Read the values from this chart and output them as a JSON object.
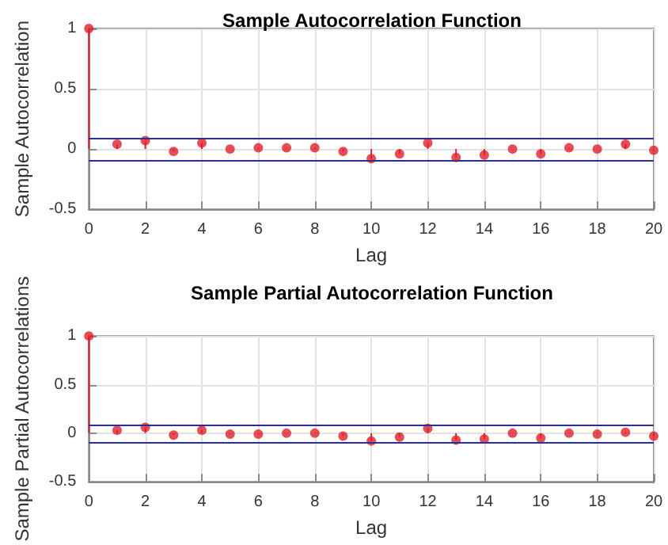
{
  "chart_data": [
    {
      "type": "lollipop",
      "title": "Sample Autocorrelation Function",
      "xlabel": "Lag",
      "ylabel": "Sample Autocorrelation",
      "x": [
        0,
        1,
        2,
        3,
        4,
        5,
        6,
        7,
        8,
        9,
        10,
        11,
        12,
        13,
        14,
        15,
        16,
        17,
        18,
        19,
        20
      ],
      "series": [
        {
          "color": "#e0202a",
          "values": [
            1,
            0.04,
            0.07,
            -0.02,
            0.05,
            0,
            0.01,
            0.01,
            0.01,
            -0.02,
            -0.08,
            -0.04,
            0.05,
            -0.07,
            -0.05,
            0,
            -0.04,
            0.01,
            0,
            0.04,
            -0.01
          ]
        }
      ],
      "xlim": [
        0,
        20
      ],
      "xticks": [
        0,
        2,
        4,
        6,
        8,
        10,
        12,
        14,
        16,
        18,
        20
      ],
      "ylim": [
        -0.5,
        1
      ],
      "yticks": [
        -0.5,
        0,
        0.5,
        1
      ],
      "grid": true,
      "marker": "circle",
      "ref_lines": [
        {
          "axis": "y",
          "value": 0.09,
          "color": "#2b2f8f"
        },
        {
          "axis": "y",
          "value": -0.09,
          "color": "#2b2f8f"
        }
      ]
    },
    {
      "type": "lollipop",
      "title": "Sample Partial Autocorrelation Function",
      "xlabel": "Lag",
      "ylabel": "Sample Partial Autocorrelations",
      "x": [
        0,
        1,
        2,
        3,
        4,
        5,
        6,
        7,
        8,
        9,
        10,
        11,
        12,
        13,
        14,
        15,
        16,
        17,
        18,
        19,
        20
      ],
      "series": [
        {
          "color": "#e0202a",
          "values": [
            1,
            0.03,
            0.06,
            -0.02,
            0.03,
            -0.01,
            -0.01,
            0,
            0,
            -0.03,
            -0.08,
            -0.04,
            0.05,
            -0.07,
            -0.06,
            0,
            -0.05,
            0,
            -0.01,
            0.01,
            -0.03
          ]
        }
      ],
      "xlim": [
        0,
        20
      ],
      "xticks": [
        0,
        2,
        4,
        6,
        8,
        10,
        12,
        14,
        16,
        18,
        20
      ],
      "ylim": [
        -0.5,
        1
      ],
      "yticks": [
        -0.5,
        0,
        0.5,
        1
      ],
      "grid": true,
      "marker": "circle",
      "ref_lines": [
        {
          "axis": "y",
          "value": 0.09,
          "color": "#2b2f8f"
        },
        {
          "axis": "y",
          "value": -0.09,
          "color": "#2b2f8f"
        }
      ]
    }
  ]
}
